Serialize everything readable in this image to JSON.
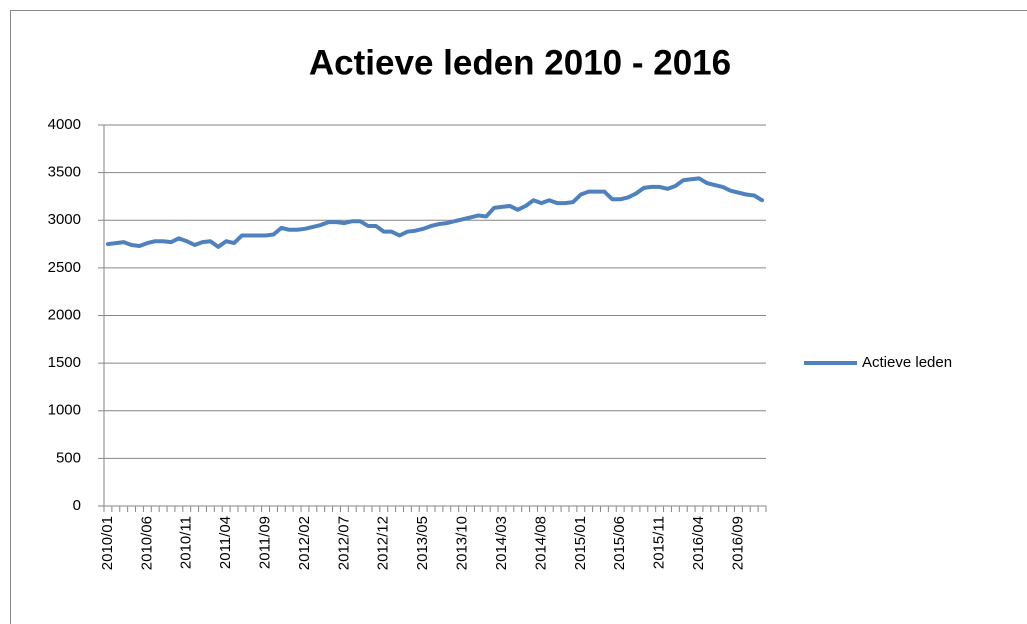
{
  "chart_data": {
    "type": "line",
    "title": "Actieve leden 2010 - 2016",
    "categories": [
      "2010/01",
      null,
      null,
      null,
      null,
      "2010/06",
      null,
      null,
      null,
      null,
      "2010/11",
      null,
      null,
      null,
      null,
      "2011/04",
      null,
      null,
      null,
      null,
      "2011/09",
      null,
      null,
      null,
      null,
      "2012/02",
      null,
      null,
      null,
      null,
      "2012/07",
      null,
      null,
      null,
      null,
      "2012/12",
      null,
      null,
      null,
      null,
      "2013/05",
      null,
      null,
      null,
      null,
      "2013/10",
      null,
      null,
      null,
      null,
      "2014/03",
      null,
      null,
      null,
      null,
      "2014/08",
      null,
      null,
      null,
      null,
      "2015/01",
      null,
      null,
      null,
      null,
      "2015/06",
      null,
      null,
      null,
      null,
      "2015/11",
      null,
      null,
      null,
      null,
      "2016/04",
      null,
      null,
      null,
      null,
      "2016/09",
      null,
      null,
      null
    ],
    "series": [
      {
        "name": "Actieve leden",
        "color": "#4f81bd",
        "values": [
          2750,
          2760,
          2770,
          2740,
          2730,
          2760,
          2780,
          2780,
          2770,
          2810,
          2780,
          2740,
          2770,
          2780,
          2720,
          2780,
          2760,
          2840,
          2840,
          2840,
          2840,
          2850,
          2920,
          2900,
          2900,
          2910,
          2930,
          2950,
          2980,
          2980,
          2970,
          2990,
          2990,
          2940,
          2940,
          2880,
          2880,
          2840,
          2880,
          2890,
          2910,
          2940,
          2960,
          2970,
          2990,
          3010,
          3030,
          3050,
          3040,
          3130,
          3140,
          3150,
          3110,
          3150,
          3210,
          3180,
          3210,
          3180,
          3180,
          3190,
          3270,
          3300,
          3300,
          3300,
          3220,
          3220,
          3240,
          3280,
          3340,
          3350,
          3350,
          3330,
          3360,
          3420,
          3430,
          3440,
          3390,
          3370,
          3350,
          3310,
          3290,
          3270,
          3260,
          3210
        ]
      }
    ],
    "ylim": [
      0,
      4000
    ],
    "yticks": [
      0,
      500,
      1000,
      1500,
      2000,
      2500,
      3000,
      3500,
      4000
    ],
    "grid": true,
    "legend": "right"
  }
}
